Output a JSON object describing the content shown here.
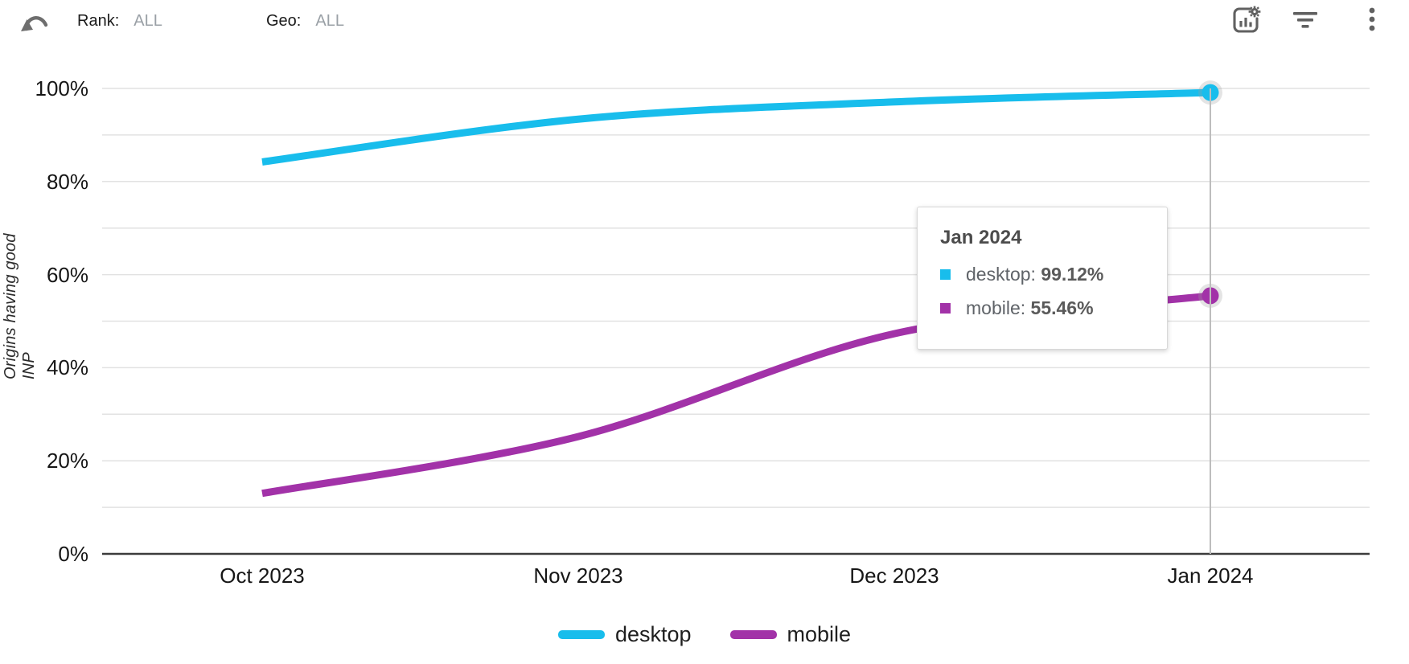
{
  "toolbar": {
    "rank_label": "Rank:",
    "rank_value": "ALL",
    "geo_label": "Geo:",
    "geo_value": "ALL",
    "icons": [
      "undo-arrow",
      "chart-settings",
      "filter",
      "more-vertical"
    ]
  },
  "chart_data": {
    "type": "line",
    "categories": [
      "Oct 2023",
      "Nov 2023",
      "Dec 2023",
      "Jan 2024"
    ],
    "series": [
      {
        "name": "desktop",
        "color": "#18BDEC",
        "values": [
          84.2,
          93.4,
          97.1,
          99.12
        ]
      },
      {
        "name": "mobile",
        "color": "#A232A8",
        "values": [
          13.0,
          25.2,
          47.3,
          55.46
        ]
      }
    ],
    "ylabel": "Origins having good INP",
    "xlabel": "",
    "ylim": [
      0,
      100
    ],
    "y_axis": {
      "ticks": [
        {
          "value": 100,
          "label": "100%"
        },
        {
          "value": 80,
          "label": "80%"
        },
        {
          "value": 60,
          "label": "60%"
        },
        {
          "value": 40,
          "label": "40%"
        },
        {
          "value": 20,
          "label": "20%"
        },
        {
          "value": 0,
          "label": "0%"
        }
      ],
      "grid_step": 10
    },
    "legend_position": "bottom",
    "highlighted_category": "Jan 2024"
  },
  "tooltip": {
    "title": "Jan 2024",
    "rows": [
      {
        "series": "desktop",
        "value": "99.12%"
      },
      {
        "series": "mobile",
        "value": "55.46%"
      }
    ]
  }
}
